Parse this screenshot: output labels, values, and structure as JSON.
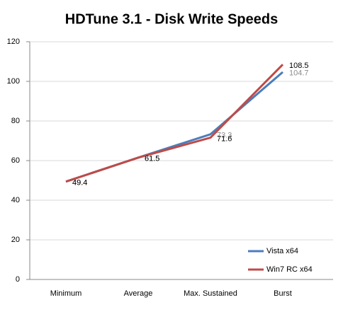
{
  "chart_data": {
    "type": "line",
    "title": "HDTune 3.1 - Disk Write Speeds",
    "categories": [
      "Minimum",
      "Average",
      "Max. Sustained",
      "Burst"
    ],
    "series": [
      {
        "name": "Vista x64",
        "color": "#4a7ebb",
        "label_color": "#8c8c8c",
        "values": [
          49.4,
          61.5,
          73.3,
          104.7
        ]
      },
      {
        "name": "Win7 RC x64",
        "color": "#be4b48",
        "label_color": "#000000",
        "values": [
          49.4,
          61.5,
          71.6,
          108.5
        ]
      }
    ],
    "ylim": [
      0,
      120
    ],
    "yticks": [
      0,
      20,
      40,
      60,
      80,
      100,
      120
    ],
    "grid": true,
    "legend": "right"
  }
}
